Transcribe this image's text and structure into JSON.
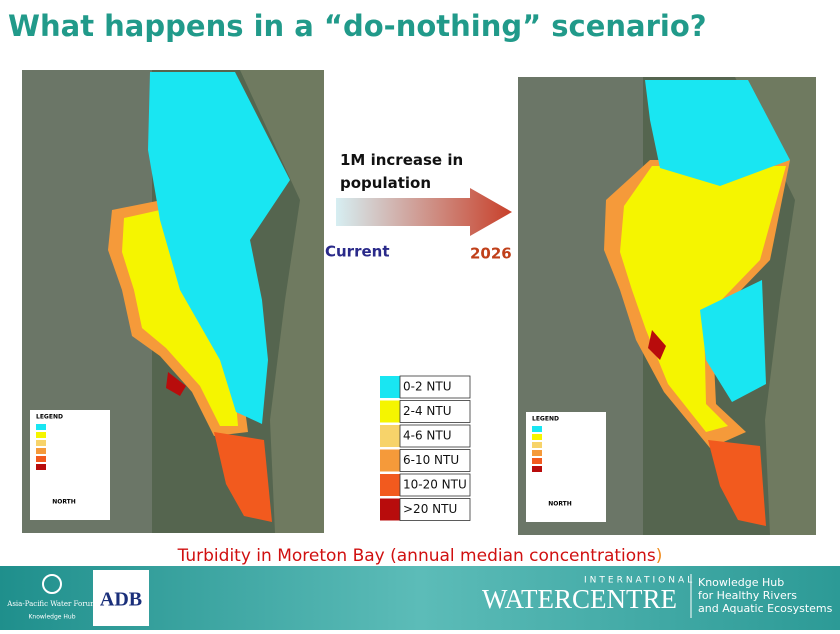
{
  "header": {
    "title": "What happens in a “do-nothing” scenario?"
  },
  "arrow": {
    "label": "1M increase in population",
    "from": "Current",
    "to": "2026"
  },
  "legend": {
    "items": [
      {
        "label": "0-2 NTU",
        "color": "#19e6f2"
      },
      {
        "label": "2-4 NTU",
        "color": "#f5f500"
      },
      {
        "label": "4-6 NTU",
        "color": "#f7d36a"
      },
      {
        "label": "6-10 NTU",
        "color": "#f59a3a"
      },
      {
        "label": "10-20 NTU",
        "color": "#f25a1e"
      },
      {
        "label": ">20 NTU",
        "color": "#b80c0c"
      }
    ]
  },
  "maps": {
    "legend_title": "LEGEND",
    "north": "NORTH"
  },
  "caption": {
    "text": "Turbidity in Moreton Bay (annual median concentrations",
    "closing": ")"
  },
  "footer": {
    "forum": "Asia-Pacific Water Forum",
    "forum_sub": "Knowledge Hub",
    "adb": "ADB",
    "iwc_top": "INTERNATIONAL",
    "iwc_name": "WATERCENTRE",
    "hub": [
      "Knowledge Hub",
      "for Healthy Rivers",
      "and Aquatic Ecosystems"
    ]
  }
}
